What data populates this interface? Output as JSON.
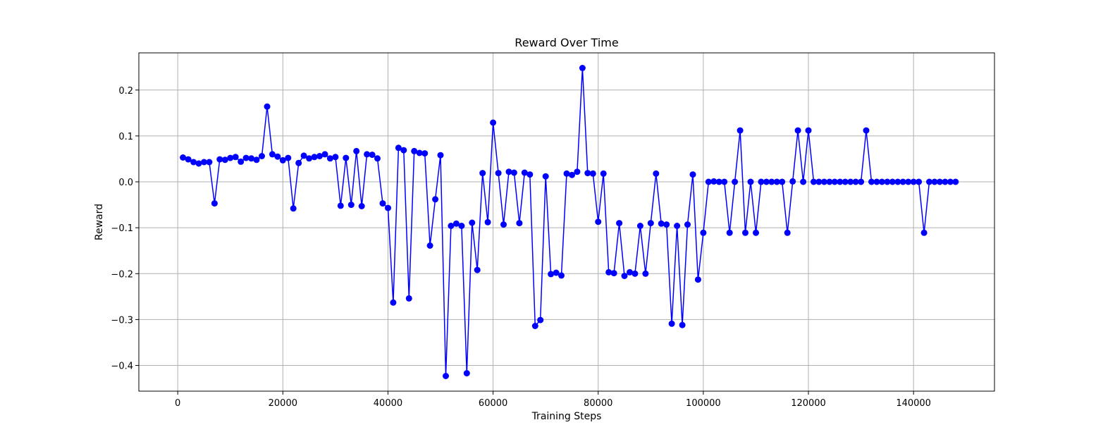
{
  "chart_data": {
    "type": "line",
    "title": "Reward Over Time",
    "xlabel": "Training Steps",
    "ylabel": "Reward",
    "xlim": [
      -7400,
      155400
    ],
    "ylim": [
      -0.456,
      0.281
    ],
    "xticks": [
      0,
      20000,
      40000,
      60000,
      80000,
      100000,
      120000,
      140000
    ],
    "xtick_labels": [
      "0",
      "20000",
      "40000",
      "60000",
      "80000",
      "100000",
      "120000",
      "140000"
    ],
    "yticks": [
      0.2,
      0.1,
      0.0,
      -0.1,
      -0.2,
      -0.3,
      -0.4
    ],
    "ytick_labels": [
      "0.2",
      "0.1",
      "0.0",
      "−0.1",
      "−0.2",
      "−0.3",
      "−0.4"
    ],
    "grid": true,
    "series": [
      {
        "color": "#0000ff",
        "marker": "circle",
        "x": [
          1000,
          2000,
          3000,
          4000,
          5000,
          6000,
          7000,
          8000,
          9000,
          10000,
          11000,
          12000,
          13000,
          14000,
          15000,
          16000,
          17000,
          18000,
          19000,
          20000,
          21000,
          22000,
          23000,
          24000,
          25000,
          26000,
          27000,
          28000,
          29000,
          30000,
          31000,
          32000,
          33000,
          34000,
          35000,
          36000,
          37000,
          38000,
          39000,
          40000,
          41000,
          42000,
          43000,
          44000,
          45000,
          46000,
          47000,
          48000,
          49000,
          50000,
          51000,
          52000,
          53000,
          54000,
          55000,
          56000,
          57000,
          58000,
          59000,
          60000,
          61000,
          62000,
          63000,
          64000,
          65000,
          66000,
          67000,
          68000,
          69000,
          70000,
          71000,
          72000,
          73000,
          74000,
          75000,
          76000,
          77000,
          78000,
          79000,
          80000,
          81000,
          82000,
          83000,
          84000,
          85000,
          86000,
          87000,
          88000,
          89000,
          90000,
          91000,
          92000,
          93000,
          94000,
          95000,
          96000,
          97000,
          98000,
          99000,
          100000,
          101000,
          102000,
          103000,
          104000,
          105000,
          106000,
          107000,
          108000,
          109000,
          110000,
          111000,
          112000,
          113000,
          114000,
          115000,
          116000,
          117000,
          118000,
          119000,
          120000,
          121000,
          122000,
          123000,
          124000,
          125000,
          126000,
          127000,
          128000,
          129000,
          130000,
          131000,
          132000,
          133000,
          134000,
          135000,
          136000,
          137000,
          138000,
          139000,
          140000,
          141000,
          142000,
          143000,
          144000,
          145000,
          146000,
          147000,
          148000
        ],
        "y": [
          0.053,
          0.049,
          0.043,
          0.04,
          0.043,
          0.043,
          -0.047,
          0.049,
          0.048,
          0.052,
          0.054,
          0.044,
          0.052,
          0.051,
          0.048,
          0.056,
          0.164,
          0.06,
          0.055,
          0.047,
          0.052,
          -0.058,
          0.041,
          0.057,
          0.051,
          0.054,
          0.056,
          0.06,
          0.051,
          0.054,
          -0.052,
          0.052,
          -0.05,
          0.067,
          -0.053,
          0.06,
          0.059,
          0.051,
          -0.047,
          -0.057,
          -0.263,
          0.074,
          0.069,
          -0.254,
          0.067,
          0.063,
          0.062,
          -0.139,
          -0.038,
          0.058,
          -0.423,
          -0.096,
          -0.091,
          -0.096,
          -0.417,
          -0.089,
          -0.192,
          0.019,
          -0.088,
          0.129,
          0.019,
          -0.093,
          0.022,
          0.02,
          -0.09,
          0.02,
          0.016,
          -0.314,
          -0.301,
          0.012,
          -0.201,
          -0.198,
          -0.204,
          0.018,
          0.015,
          0.022,
          0.248,
          0.019,
          0.018,
          -0.087,
          0.018,
          -0.197,
          -0.199,
          -0.09,
          -0.205,
          -0.197,
          -0.2,
          -0.096,
          -0.2,
          -0.09,
          0.018,
          -0.091,
          -0.093,
          -0.309,
          -0.096,
          -0.312,
          -0.093,
          0.016,
          -0.213,
          -0.111,
          0.0,
          0.001,
          0.0,
          0.0,
          -0.111,
          0.0,
          0.112,
          -0.111,
          0.0,
          -0.111,
          0.0,
          0.0,
          0.0,
          0.0,
          0.0,
          -0.111,
          0.001,
          0.112,
          0.0,
          0.112,
          0.0,
          0.0,
          0.0,
          0.0,
          0.0,
          0.0,
          0.0,
          0.0,
          0.0,
          0.0,
          0.112,
          0.0,
          0.0,
          0.0,
          0.0,
          0.0,
          0.0,
          0.0,
          0.0,
          0.0,
          0.0,
          -0.111,
          0.0,
          0.0,
          0.0,
          0.0,
          0.0,
          0.0
        ]
      }
    ]
  }
}
